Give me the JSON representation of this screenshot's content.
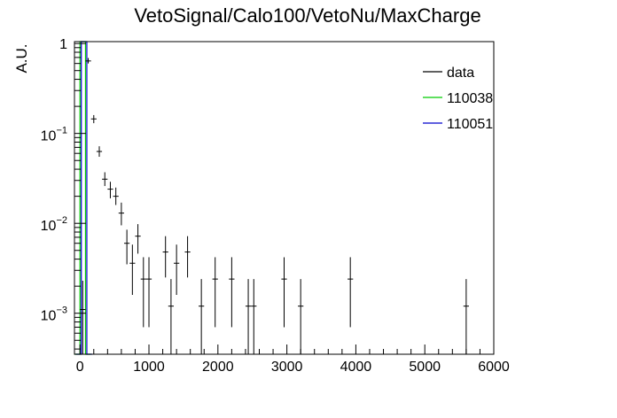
{
  "chart_data": {
    "type": "scatter",
    "title": "VetoSignal/Calo100/VetoNu/MaxCharge",
    "xlabel": "",
    "ylabel": "A.U.",
    "xlim": [
      -80,
      6000
    ],
    "ylim": [
      0.00035,
      1.05
    ],
    "yscale": "log",
    "grid": false,
    "legend_position": "top-right",
    "x_ticks": [
      0,
      1000,
      2000,
      3000,
      4000,
      5000,
      6000
    ],
    "x_tick_labels": [
      "0",
      "1000",
      "2000",
      "3000",
      "4000",
      "5000",
      "6000"
    ],
    "y_ticks": [
      {
        "value": 1,
        "base": "1",
        "exp": ""
      },
      {
        "value": 0.1,
        "base": "10",
        "exp": "−1"
      },
      {
        "value": 0.01,
        "base": "10",
        "exp": "−2"
      },
      {
        "value": 0.001,
        "base": "10",
        "exp": "−3"
      }
    ],
    "legend": [
      {
        "label": "data",
        "color": "#000000"
      },
      {
        "label": "110038",
        "color": "#00cc00"
      },
      {
        "label": "110051",
        "color": "#0000cc"
      }
    ],
    "series": [
      {
        "name": "data",
        "color": "#000000",
        "style": "errorbar",
        "bin_half_width": 40,
        "points": [
          {
            "x": 40,
            "y": 0.0011,
            "ylo": 0.0003,
            "yhi": 0.0023
          },
          {
            "x": 120,
            "y": 0.64,
            "ylo": 0.6,
            "yhi": 0.69
          },
          {
            "x": 200,
            "y": 0.145,
            "ylo": 0.13,
            "yhi": 0.16
          },
          {
            "x": 280,
            "y": 0.063,
            "ylo": 0.055,
            "yhi": 0.072
          },
          {
            "x": 360,
            "y": 0.031,
            "ylo": 0.026,
            "yhi": 0.037
          },
          {
            "x": 440,
            "y": 0.024,
            "ylo": 0.019,
            "yhi": 0.029
          },
          {
            "x": 520,
            "y": 0.02,
            "ylo": 0.016,
            "yhi": 0.025
          },
          {
            "x": 600,
            "y": 0.013,
            "ylo": 0.0095,
            "yhi": 0.017
          },
          {
            "x": 680,
            "y": 0.006,
            "ylo": 0.0035,
            "yhi": 0.0085
          },
          {
            "x": 760,
            "y": 0.0036,
            "ylo": 0.0016,
            "yhi": 0.0058
          },
          {
            "x": 840,
            "y": 0.0072,
            "ylo": 0.0046,
            "yhi": 0.0098
          },
          {
            "x": 920,
            "y": 0.0024,
            "ylo": 0.0007,
            "yhi": 0.0042
          },
          {
            "x": 1000,
            "y": 0.0024,
            "ylo": 0.0007,
            "yhi": 0.0042
          },
          {
            "x": 1240,
            "y": 0.0048,
            "ylo": 0.0025,
            "yhi": 0.0072
          },
          {
            "x": 1320,
            "y": 0.0012,
            "ylo": 0.00035,
            "yhi": 0.0024
          },
          {
            "x": 1400,
            "y": 0.0036,
            "ylo": 0.0016,
            "yhi": 0.0058
          },
          {
            "x": 1560,
            "y": 0.0048,
            "ylo": 0.0025,
            "yhi": 0.0072
          },
          {
            "x": 1760,
            "y": 0.0012,
            "ylo": 0.00035,
            "yhi": 0.0024
          },
          {
            "x": 1960,
            "y": 0.0024,
            "ylo": 0.0007,
            "yhi": 0.0042
          },
          {
            "x": 2200,
            "y": 0.0024,
            "ylo": 0.0007,
            "yhi": 0.0042
          },
          {
            "x": 2440,
            "y": 0.0012,
            "ylo": 0.00035,
            "yhi": 0.0024
          },
          {
            "x": 2520,
            "y": 0.0012,
            "ylo": 0.00035,
            "yhi": 0.0024
          },
          {
            "x": 2960,
            "y": 0.0024,
            "ylo": 0.0007,
            "yhi": 0.0042
          },
          {
            "x": 3200,
            "y": 0.0012,
            "ylo": 0.00035,
            "yhi": 0.0024
          },
          {
            "x": 3920,
            "y": 0.0024,
            "ylo": 0.0007,
            "yhi": 0.0042
          },
          {
            "x": 5600,
            "y": 0.0012,
            "ylo": 0.00035,
            "yhi": 0.0024
          }
        ]
      },
      {
        "name": "110038",
        "color": "#00cc00",
        "style": "hist",
        "bins": [
          {
            "x0": -80,
            "x1": 0,
            "y": 0.00035
          },
          {
            "x0": 0,
            "x1": 80,
            "y": 1.05
          },
          {
            "x0": 80,
            "x1": 160,
            "y": 0.00035
          }
        ]
      },
      {
        "name": "110051",
        "color": "#0000cc",
        "style": "hist",
        "bins": [
          {
            "x0": -80,
            "x1": 0,
            "y": 0.00035
          },
          {
            "x0": 0,
            "x1": 80,
            "y": 1.05
          },
          {
            "x0": 80,
            "x1": 160,
            "y": 0.00035
          }
        ]
      }
    ]
  }
}
